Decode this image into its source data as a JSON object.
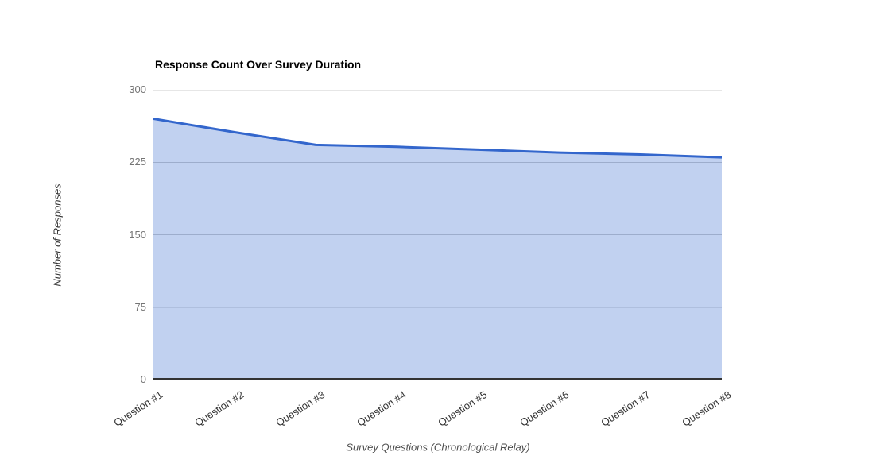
{
  "chart_data": {
    "type": "area",
    "title": "Response Count Over Survey Duration",
    "xlabel": "Survey Questions (Chronological Relay)",
    "ylabel": "Number of Responses",
    "categories": [
      "Question #1",
      "Question #2",
      "Question #3",
      "Question #4",
      "Question #5",
      "Question #6",
      "Question #7",
      "Question #8"
    ],
    "values": [
      270,
      256,
      243,
      241,
      238,
      235,
      233,
      230
    ],
    "ylim": [
      0,
      300
    ],
    "yticks": [
      0,
      75,
      150,
      225,
      300
    ],
    "grid": true,
    "legend": "none",
    "colors": {
      "series_line": "#3366cc",
      "series_fill": "#c2d1f0",
      "series_fill_opacity": "0.3",
      "gridline": "#cccccc",
      "axis_line": "#333333",
      "tick_label": "#757575",
      "category_label": "#333333",
      "title": "#000000",
      "axis_title": "#4d4d4d"
    }
  }
}
